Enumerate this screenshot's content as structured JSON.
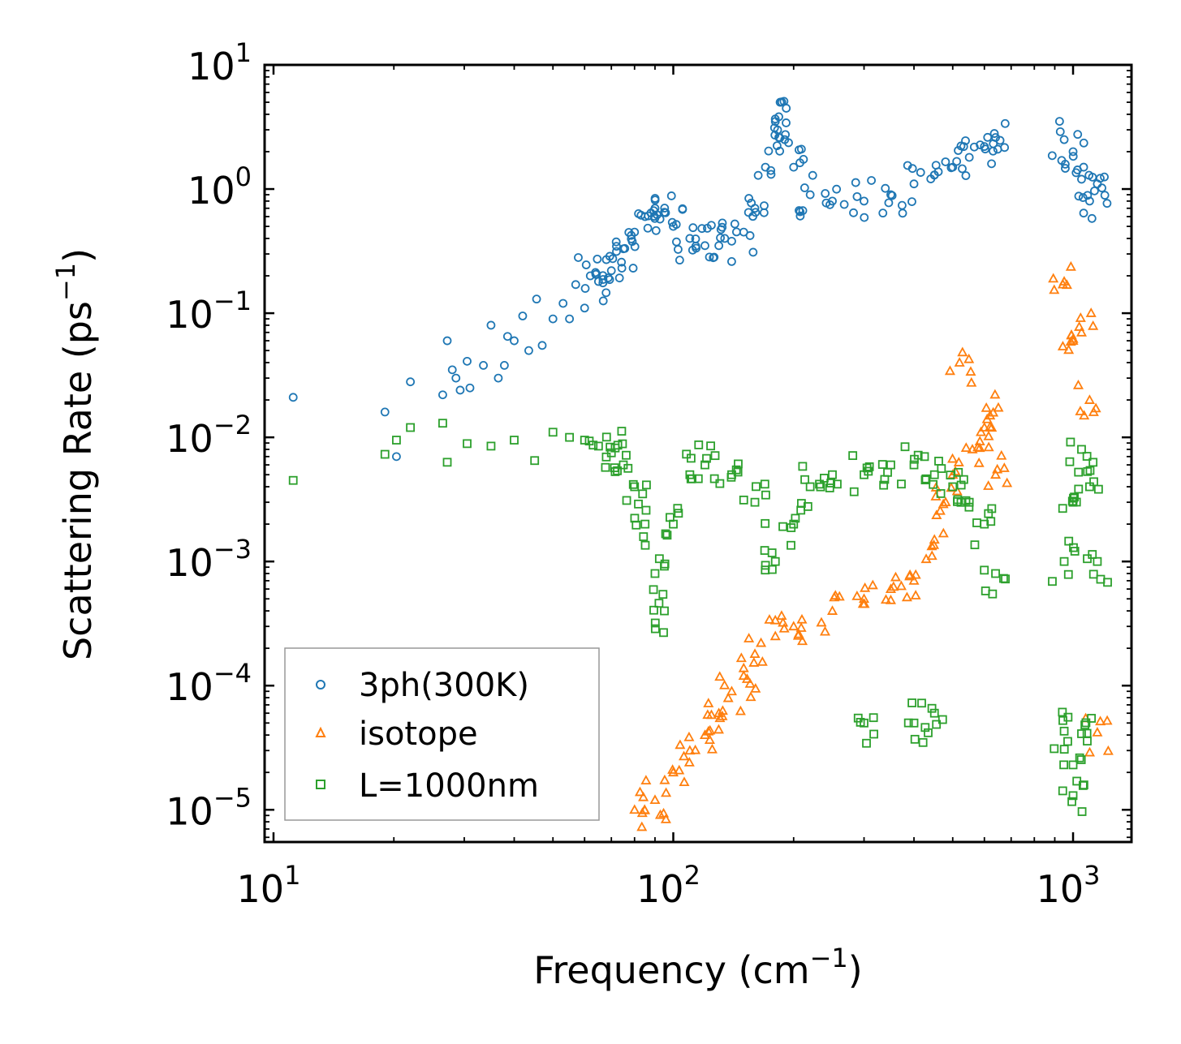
{
  "chart_data": {
    "type": "scatter",
    "title": "",
    "xlabel": "Frequency (cm",
    "xlabel_sup": "−1",
    "xlabel_end": ")",
    "ylabel": "Scattering Rate (ps",
    "ylabel_sup": "−1",
    "ylabel_end": ")",
    "xscale": "log",
    "yscale": "log",
    "xlim": [
      9.5,
      1400
    ],
    "ylim": [
      5.5e-06,
      10
    ],
    "x_ticks": [
      {
        "base": "10",
        "exp": "1",
        "value": 10
      },
      {
        "base": "10",
        "exp": "2",
        "value": 100
      },
      {
        "base": "10",
        "exp": "3",
        "value": 1000
      }
    ],
    "y_ticks": [
      {
        "base": "10",
        "exp": "1",
        "value": 10
      },
      {
        "base": "10",
        "exp": "0",
        "value": 1
      },
      {
        "base": "10",
        "exp": "−1",
        "value": 0.1
      },
      {
        "base": "10",
        "exp": "−2",
        "value": 0.01
      },
      {
        "base": "10",
        "exp": "−3",
        "value": 0.001
      },
      {
        "base": "10",
        "exp": "−4",
        "value": 0.0001
      },
      {
        "base": "10",
        "exp": "−5",
        "value": 1e-05
      }
    ],
    "legend_position": "lower-left",
    "series": [
      {
        "name": "3ph(300K)",
        "marker": "circle",
        "color": "#1f77b4",
        "points": [
          [
            11.2,
            0.021
          ],
          [
            19,
            0.016
          ],
          [
            20.3,
            0.007
          ],
          [
            22,
            0.028
          ],
          [
            26.5,
            0.022
          ],
          [
            27.2,
            0.06
          ],
          [
            28,
            0.035
          ],
          [
            28.6,
            0.03
          ],
          [
            29.3,
            0.024
          ],
          [
            30.5,
            0.041
          ],
          [
            31,
            0.025
          ],
          [
            33.5,
            0.038
          ],
          [
            35,
            0.08
          ],
          [
            36.5,
            0.03
          ],
          [
            37.8,
            0.038
          ],
          [
            38.5,
            0.065
          ],
          [
            40,
            0.06
          ],
          [
            42,
            0.095
          ],
          [
            43.5,
            0.05
          ],
          [
            45.5,
            0.13
          ],
          [
            47,
            0.055
          ],
          [
            50,
            0.09
          ],
          [
            53,
            0.12
          ],
          [
            55,
            0.09
          ],
          [
            57,
            0.17
          ],
          [
            60,
            0.11
          ],
          [
            62,
            0.2
          ],
          [
            65,
            0.18
          ],
          [
            68,
            0.27
          ],
          [
            70,
            0.22
          ],
          [
            75,
            0.33
          ],
          [
            80,
            0.45
          ],
          [
            85,
            0.6
          ],
          [
            90,
            0.7
          ],
          [
            95,
            0.65
          ],
          [
            100,
            0.5
          ],
          [
            110,
            0.4
          ],
          [
            120,
            0.35
          ],
          [
            130,
            0.35
          ],
          [
            140,
            0.38
          ],
          [
            150,
            0.45
          ],
          [
            160,
            0.7
          ],
          [
            170,
            1.5
          ],
          [
            180,
            3.5
          ],
          [
            185,
            5
          ],
          [
            190,
            2.5
          ],
          [
            200,
            1.5
          ],
          [
            220,
            0.9
          ],
          [
            250,
            0.8
          ],
          [
            300,
            0.8
          ],
          [
            350,
            0.9
          ],
          [
            400,
            1.1
          ],
          [
            450,
            1.3
          ],
          [
            500,
            1.5
          ],
          [
            550,
            1.8
          ],
          [
            600,
            2.2
          ],
          [
            640,
            2.6
          ],
          [
            950,
            2.5
          ],
          [
            1000,
            2
          ],
          [
            1050,
            1.2
          ],
          [
            1100,
            0.8
          ],
          [
            1150,
            1.1
          ]
        ]
      },
      {
        "name": "isotope",
        "marker": "triangle",
        "color": "#ff7f0e",
        "points": [
          [
            80,
            1e-05
          ],
          [
            90,
            1.2e-05
          ],
          [
            100,
            2e-05
          ],
          [
            110,
            3e-05
          ],
          [
            120,
            4e-05
          ],
          [
            130,
            6e-05
          ],
          [
            140,
            9e-05
          ],
          [
            150,
            0.00012
          ],
          [
            160,
            0.00018
          ],
          [
            180,
            0.00025
          ],
          [
            200,
            0.0003
          ],
          [
            250,
            0.0004
          ],
          [
            300,
            0.0005
          ],
          [
            350,
            0.0006
          ],
          [
            400,
            0.0007
          ],
          [
            450,
            0.0015
          ],
          [
            480,
            0.003
          ],
          [
            500,
            0.005
          ],
          [
            520,
            0.04
          ],
          [
            560,
            0.008
          ],
          [
            600,
            0.012
          ],
          [
            620,
            0.015
          ],
          [
            640,
            0.005
          ],
          [
            950,
            0.18
          ],
          [
            1000,
            0.06
          ],
          [
            1050,
            0.07
          ],
          [
            1100,
            0.02
          ],
          [
            1150,
            4.2e-05
          ]
        ]
      },
      {
        "name": "L=1000nm",
        "marker": "square",
        "color": "#2ca02c",
        "points": [
          [
            11.2,
            0.0045
          ],
          [
            19,
            0.0073
          ],
          [
            20.3,
            0.0095
          ],
          [
            22,
            0.012
          ],
          [
            26.5,
            0.013
          ],
          [
            27.2,
            0.0063
          ],
          [
            30.5,
            0.0089
          ],
          [
            35,
            0.0085
          ],
          [
            40,
            0.0095
          ],
          [
            45,
            0.0065
          ],
          [
            50,
            0.011
          ],
          [
            55,
            0.01
          ],
          [
            60,
            0.0095
          ],
          [
            65,
            0.0085
          ],
          [
            70,
            0.0075
          ],
          [
            75,
            0.006
          ],
          [
            80,
            0.004
          ],
          [
            85,
            0.002
          ],
          [
            90,
            0.0008
          ],
          [
            95,
            0.0004
          ],
          [
            100,
            0.002
          ],
          [
            110,
            0.005
          ],
          [
            120,
            0.006
          ],
          [
            140,
            0.005
          ],
          [
            160,
            0.003
          ],
          [
            180,
            0.001
          ],
          [
            200,
            0.002
          ],
          [
            220,
            0.004
          ],
          [
            250,
            0.005
          ],
          [
            300,
            0.005
          ],
          [
            350,
            0.006
          ],
          [
            400,
            0.006
          ],
          [
            450,
            0.005
          ],
          [
            500,
            0.004
          ],
          [
            550,
            0.003
          ],
          [
            600,
            0.002
          ],
          [
            640,
            0.0008
          ],
          [
            950,
            0.001
          ],
          [
            1000,
            0.003
          ],
          [
            1050,
            0.008
          ],
          [
            1100,
            0.004
          ],
          [
            1150,
            0.001
          ],
          [
            300,
            5e-05
          ],
          [
            400,
            5e-05
          ],
          [
            450,
            6e-05
          ],
          [
            1000,
            1.3e-05
          ],
          [
            1000,
            2.3e-05
          ],
          [
            950,
            4.3e-05
          ],
          [
            1050,
            4.1e-05
          ]
        ]
      }
    ]
  }
}
